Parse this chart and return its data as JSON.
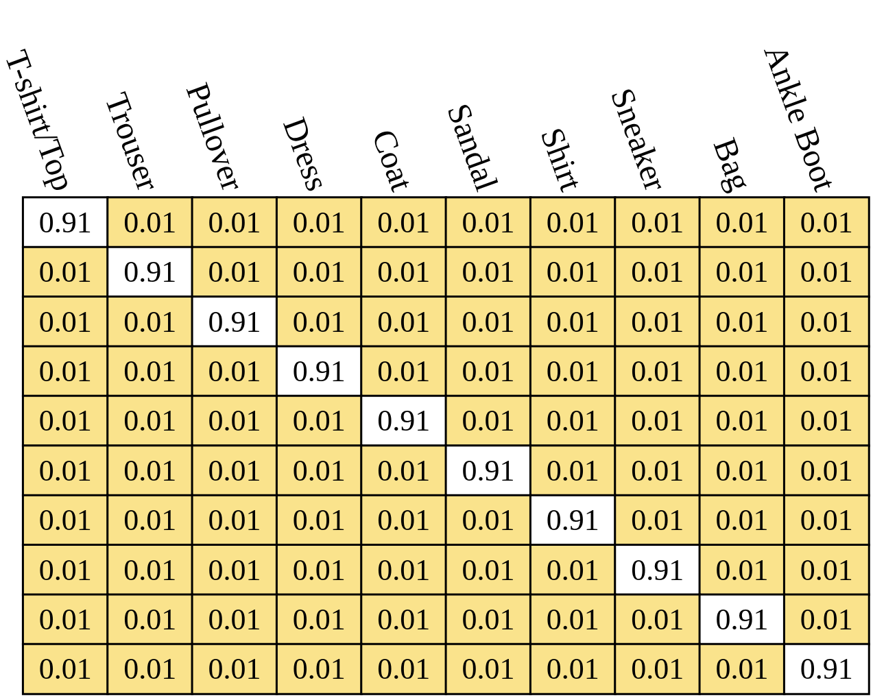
{
  "chart_data": {
    "type": "heatmap",
    "categories": [
      "T-shirt/Top",
      "Trouser",
      "Pullover",
      "Dress",
      "Coat",
      "Sandal",
      "Shirt",
      "Sneaker",
      "Bag",
      "Ankle Boot"
    ],
    "y_categories": [
      null,
      null,
      null,
      null,
      null,
      null,
      null,
      null,
      null,
      null
    ],
    "colors": [
      "#fae38c",
      "#ffffff"
    ],
    "data_labels": true,
    "cells": [
      [
        0.91,
        0.01,
        0.01,
        0.01,
        0.01,
        0.01,
        0.01,
        0.01,
        0.01,
        0.01
      ],
      [
        0.01,
        0.91,
        0.01,
        0.01,
        0.01,
        0.01,
        0.01,
        0.01,
        0.01,
        0.01
      ],
      [
        0.01,
        0.01,
        0.91,
        0.01,
        0.01,
        0.01,
        0.01,
        0.01,
        0.01,
        0.01
      ],
      [
        0.01,
        0.01,
        0.01,
        0.91,
        0.01,
        0.01,
        0.01,
        0.01,
        0.01,
        0.01
      ],
      [
        0.01,
        0.01,
        0.01,
        0.01,
        0.91,
        0.01,
        0.01,
        0.01,
        0.01,
        0.01
      ],
      [
        0.01,
        0.01,
        0.01,
        0.01,
        0.01,
        0.91,
        0.01,
        0.01,
        0.01,
        0.01
      ],
      [
        0.01,
        0.01,
        0.01,
        0.01,
        0.01,
        0.01,
        0.91,
        0.01,
        0.01,
        0.01
      ],
      [
        0.01,
        0.01,
        0.01,
        0.01,
        0.01,
        0.01,
        0.01,
        0.91,
        0.01,
        0.01
      ],
      [
        0.01,
        0.01,
        0.01,
        0.01,
        0.01,
        0.01,
        0.01,
        0.01,
        0.91,
        0.01
      ],
      [
        0.01,
        0.01,
        0.01,
        0.01,
        0.01,
        0.01,
        0.01,
        0.01,
        0.01,
        0.91
      ]
    ]
  }
}
